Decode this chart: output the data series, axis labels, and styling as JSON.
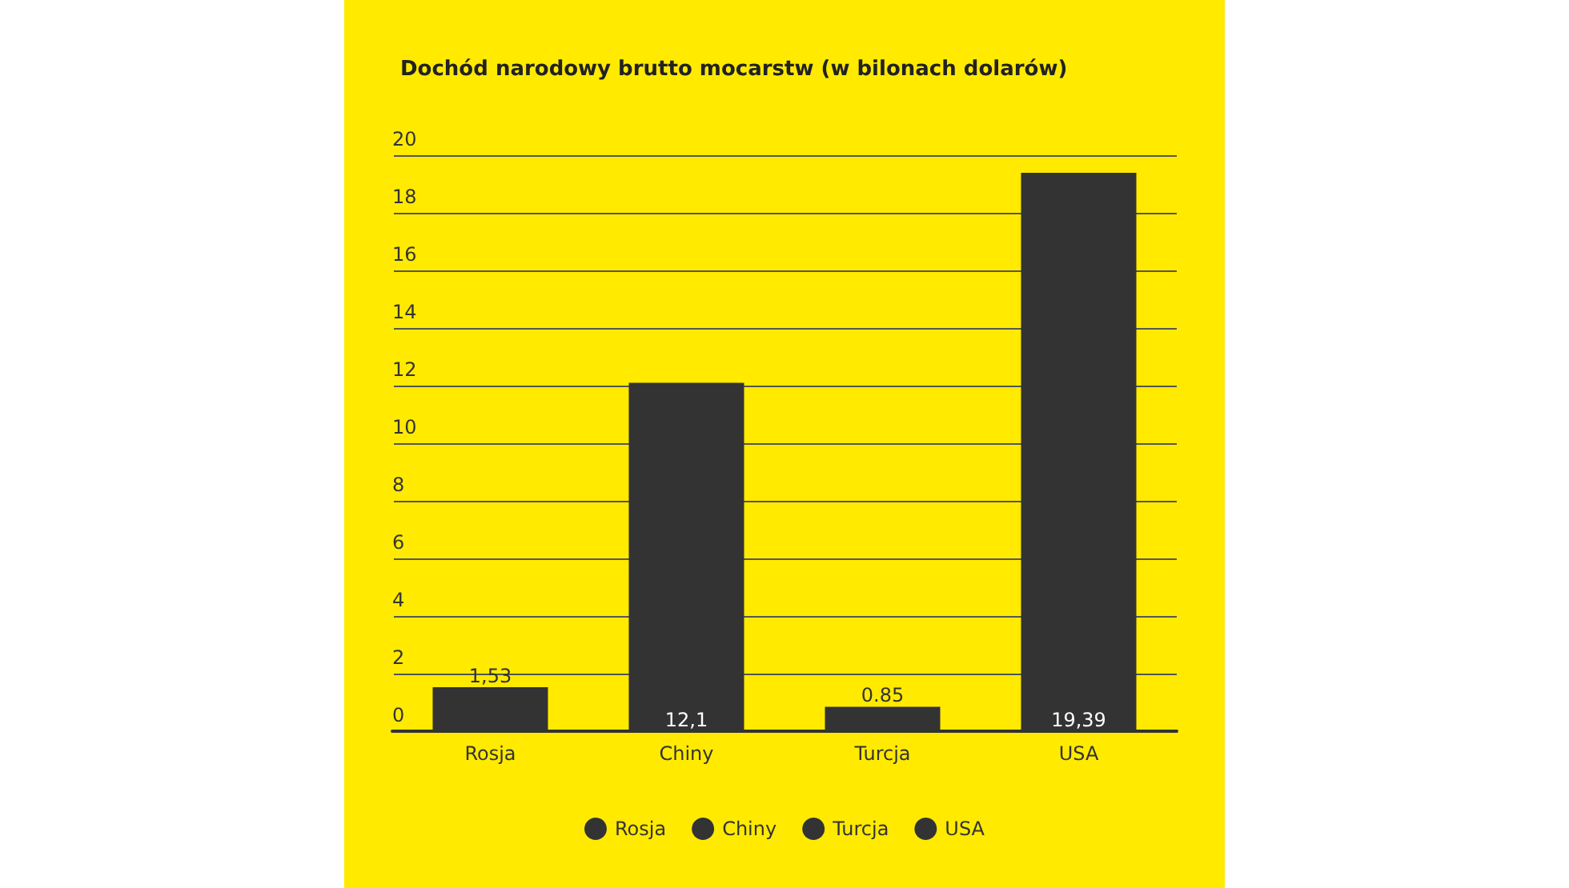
{
  "chart_data": {
    "type": "bar",
    "title": "Dochód narodowy brutto mocarstw (w bilonach dolarów)",
    "categories": [
      "Rosja",
      "Chiny",
      "Turcja",
      "USA"
    ],
    "series": [
      {
        "name": "Rosja",
        "color": "#333333",
        "values": [
          1.53,
          null,
          null,
          null
        ],
        "value_labels": [
          "1,53",
          null,
          null,
          null
        ]
      },
      {
        "name": "Chiny",
        "color": "#333333",
        "values": [
          null,
          12.1,
          null,
          null
        ],
        "value_labels": [
          null,
          "12,1",
          null,
          null
        ]
      },
      {
        "name": "Turcja",
        "color": "#333333",
        "values": [
          null,
          null,
          0.85,
          null
        ],
        "value_labels": [
          null,
          null,
          "0.85",
          null
        ]
      },
      {
        "name": "USA",
        "color": "#333333",
        "values": [
          null,
          null,
          null,
          19.39
        ],
        "value_labels": [
          null,
          null,
          null,
          "19,39"
        ]
      }
    ],
    "ylim": [
      0,
      20
    ],
    "yticks": [
      0,
      2,
      4,
      6,
      8,
      10,
      12,
      14,
      16,
      18,
      20
    ],
    "grid": "y",
    "legend": "bottom"
  }
}
